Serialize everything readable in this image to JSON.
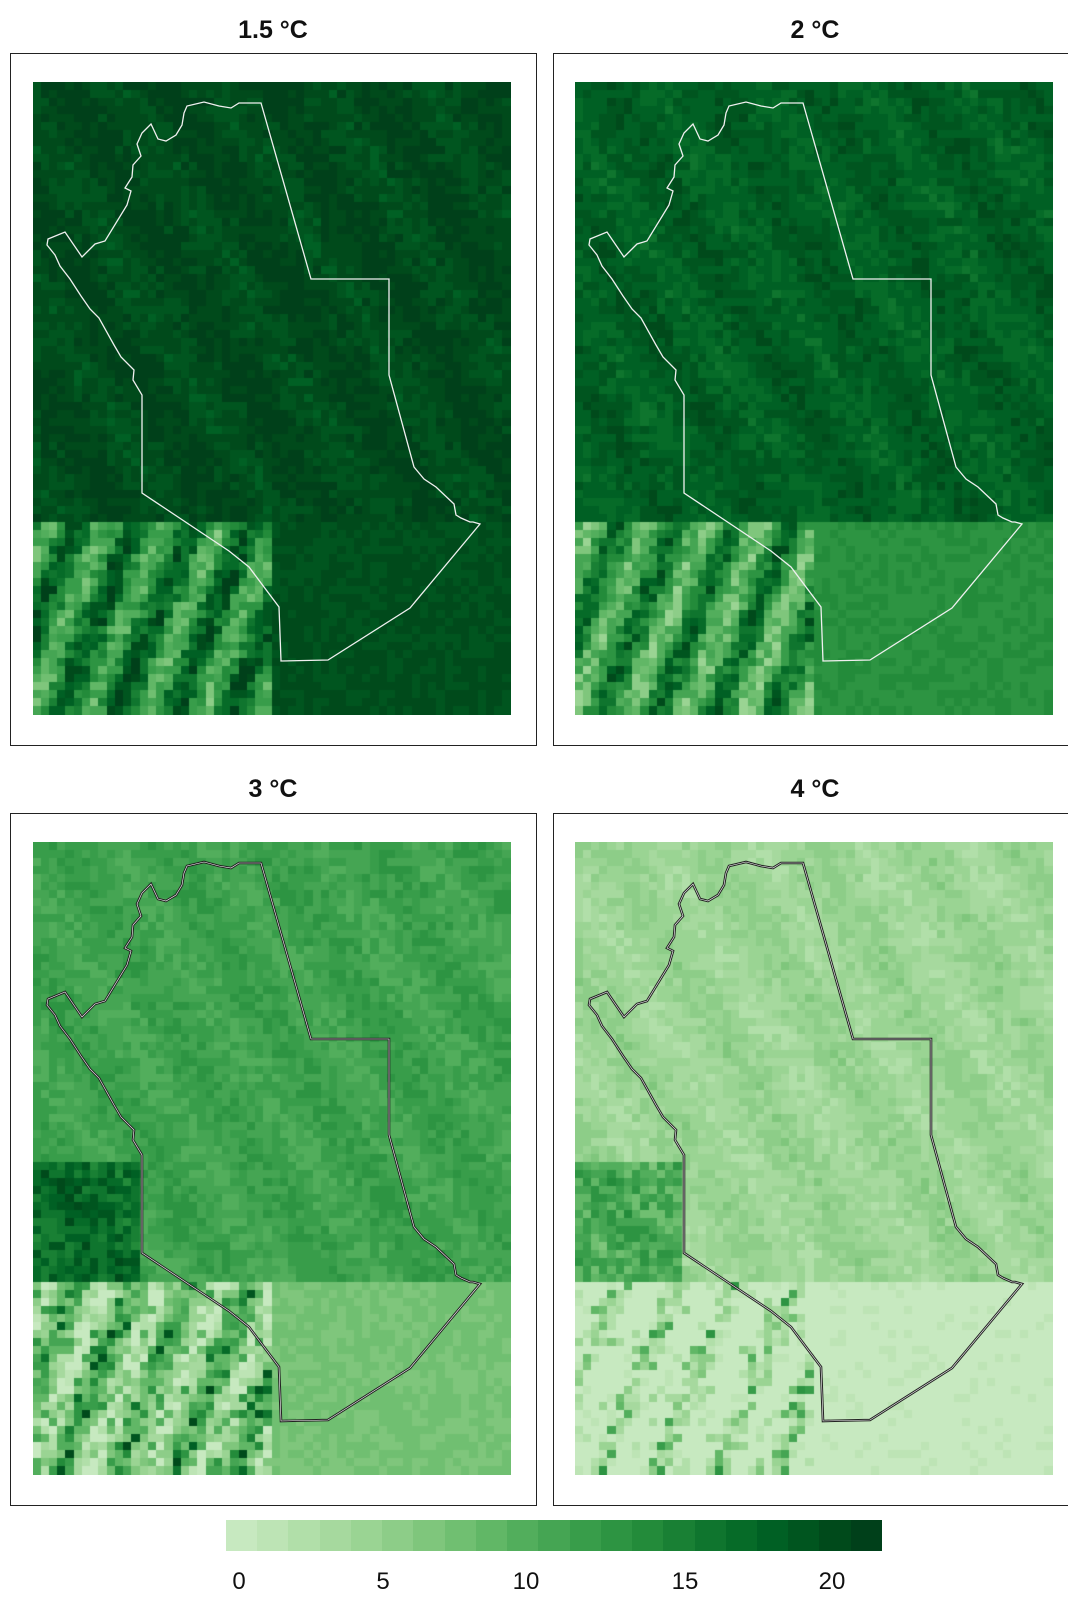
{
  "panels": [
    {
      "title": "1.5 °C",
      "scenario_level": 20.5,
      "outline_color": "#f0f0f0"
    },
    {
      "title": "2 °C",
      "scenario_level": 18.5,
      "outline_color": "#f0f0f0"
    },
    {
      "title": "3 °C",
      "scenario_level": 11.5,
      "outline_color": "#222222"
    },
    {
      "title": "4 °C",
      "scenario_level": 4.5,
      "outline_color": "#222222"
    }
  ],
  "colorbar": {
    "range": [
      0,
      22
    ],
    "ticks": [
      "0",
      "5",
      "10",
      "15",
      "20"
    ],
    "colors": [
      "#c7e9c0",
      "#bde4b5",
      "#b1dfa9",
      "#a6d99e",
      "#9ad493",
      "#8dcd88",
      "#7fc67c",
      "#70bf71",
      "#61b766",
      "#52ae5c",
      "#45a553",
      "#389d4a",
      "#2d9442",
      "#238b3a",
      "#198034",
      "#0f752e",
      "#066b28",
      "#006024",
      "#00551f",
      "#004a1b",
      "#00401a"
    ]
  }
}
